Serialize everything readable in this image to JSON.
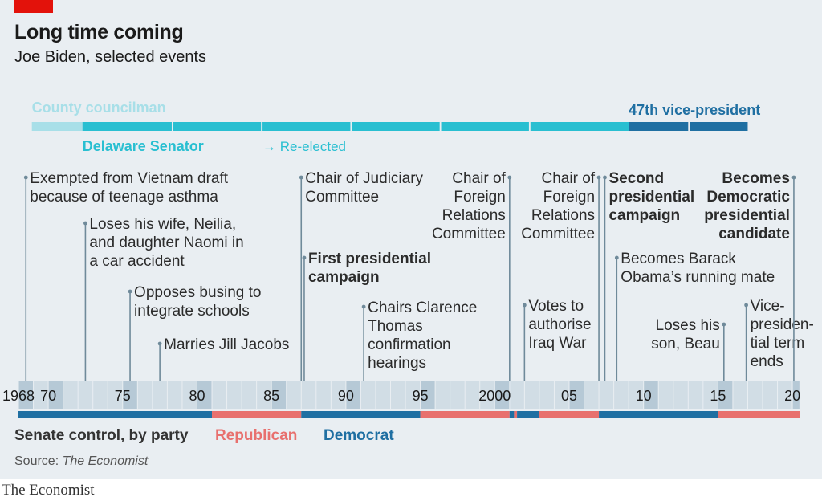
{
  "header": {
    "title": "Long time coming",
    "subtitle": "Joe Biden, selected events"
  },
  "footer": {
    "brand": "The Economist"
  },
  "chart_data": {
    "type": "timeline",
    "x_range": [
      1968,
      2020
    ],
    "x_ticks": [
      {
        "year": 1968,
        "label": "1968"
      },
      {
        "year": 1970,
        "label": "70"
      },
      {
        "year": 1975,
        "label": "75"
      },
      {
        "year": 1980,
        "label": "80"
      },
      {
        "year": 1985,
        "label": "85"
      },
      {
        "year": 1990,
        "label": "90"
      },
      {
        "year": 1995,
        "label": "95"
      },
      {
        "year": 2000,
        "label": "2000"
      },
      {
        "year": 2005,
        "label": "05"
      },
      {
        "year": 2010,
        "label": "10"
      },
      {
        "year": 2015,
        "label": "15"
      },
      {
        "year": 2020,
        "label": "20"
      }
    ],
    "roles": [
      {
        "label": "County councilman",
        "start": 1968.9,
        "end": 1972.3,
        "color": "#a8dfe8",
        "segments": [
          [
            1968.9,
            1972.3
          ]
        ]
      },
      {
        "label": "Delaware Senator",
        "start": 1972.3,
        "end": 2009,
        "color": "#29bfd1",
        "segments": [
          [
            1972.3,
            1978.3
          ],
          [
            1978.4,
            1984.3
          ],
          [
            1984.4,
            1990.3
          ],
          [
            1990.4,
            1996.3
          ],
          [
            1996.4,
            2002.3
          ],
          [
            2002.4,
            2009
          ]
        ],
        "note": "→ Re-elected"
      },
      {
        "label": "47th vice-president",
        "start": 2009,
        "end": 2017,
        "color": "#1f6fa2",
        "segments": [
          [
            2009,
            2013
          ],
          [
            2013.1,
            2017
          ]
        ]
      }
    ],
    "events": [
      {
        "year": 1968.5,
        "side": "right",
        "bold": false,
        "lines": [
          "Exempted from Vietnam draft",
          "because of teenage asthma"
        ]
      },
      {
        "year": 1972.5,
        "side": "right",
        "bold": false,
        "lines": [
          "Loses his wife, Neilia,",
          "and daughter Naomi in",
          "a car accident"
        ]
      },
      {
        "year": 1975.5,
        "side": "right",
        "bold": false,
        "lines": [
          "Opposes busing to",
          "integrate schools"
        ]
      },
      {
        "year": 1977.5,
        "side": "right",
        "bold": false,
        "lines": [
          "Marries Jill Jacobs"
        ]
      },
      {
        "year": 1987,
        "side": "right",
        "bold": false,
        "lines": [
          "Chair of Judiciary",
          "Committee"
        ]
      },
      {
        "year": 1987.2,
        "side": "right",
        "bold": true,
        "lines": [
          "First presidential",
          "campaign"
        ]
      },
      {
        "year": 1991.2,
        "side": "right",
        "bold": false,
        "lines": [
          "Chairs Clarence",
          "Thomas",
          "confirmation",
          "hearings"
        ]
      },
      {
        "year": 2001,
        "side": "left",
        "bold": false,
        "lines": [
          "Chair of",
          "Foreign",
          "Relations",
          "Committee"
        ]
      },
      {
        "year": 2002,
        "side": "right",
        "bold": false,
        "lines": [
          "Votes to",
          "authorise",
          "Iraq War"
        ]
      },
      {
        "year": 2007,
        "side": "left",
        "bold": false,
        "lines": [
          "Chair of",
          "Foreign",
          "Relations",
          "Committee"
        ]
      },
      {
        "year": 2007.4,
        "side": "right",
        "bold": true,
        "lines": [
          "Second",
          "presidential",
          "campaign"
        ]
      },
      {
        "year": 2008.2,
        "side": "right",
        "bold": false,
        "lines": [
          "Becomes Barack",
          "Obama’s running mate"
        ]
      },
      {
        "year": 2015.4,
        "side": "left",
        "bold": false,
        "lines": [
          "Loses his",
          "son, Beau"
        ]
      },
      {
        "year": 2016.9,
        "side": "right",
        "bold": false,
        "lines": [
          "Vice-",
          "presiden-",
          "tial term",
          "ends"
        ]
      },
      {
        "year": 2020.1,
        "side": "left",
        "bold": true,
        "lines": [
          "Becomes",
          "Democratic",
          "presidential",
          "candidate"
        ]
      }
    ],
    "senate_control": {
      "label": "Senate control, by party",
      "legend": [
        {
          "party": "Republican",
          "color": "#e8706e"
        },
        {
          "party": "Democrat",
          "color": "#1f6fa2"
        }
      ],
      "periods": [
        {
          "party": "Democrat",
          "start": 1968,
          "end": 1981
        },
        {
          "party": "Republican",
          "start": 1981,
          "end": 1987
        },
        {
          "party": "Democrat",
          "start": 1987,
          "end": 1995
        },
        {
          "party": "Republican",
          "start": 1995,
          "end": 2001
        },
        {
          "party": "Democrat",
          "start": 2001,
          "end": 2001.3
        },
        {
          "party": "Republican",
          "start": 2001.3,
          "end": 2001.5
        },
        {
          "party": "Democrat",
          "start": 2001.5,
          "end": 2003
        },
        {
          "party": "Republican",
          "start": 2003,
          "end": 2007
        },
        {
          "party": "Democrat",
          "start": 2007,
          "end": 2015
        },
        {
          "party": "Republican",
          "start": 2015,
          "end": 2020.5
        }
      ]
    },
    "source": {
      "prefix": "Source: ",
      "name": "The Economist"
    }
  }
}
